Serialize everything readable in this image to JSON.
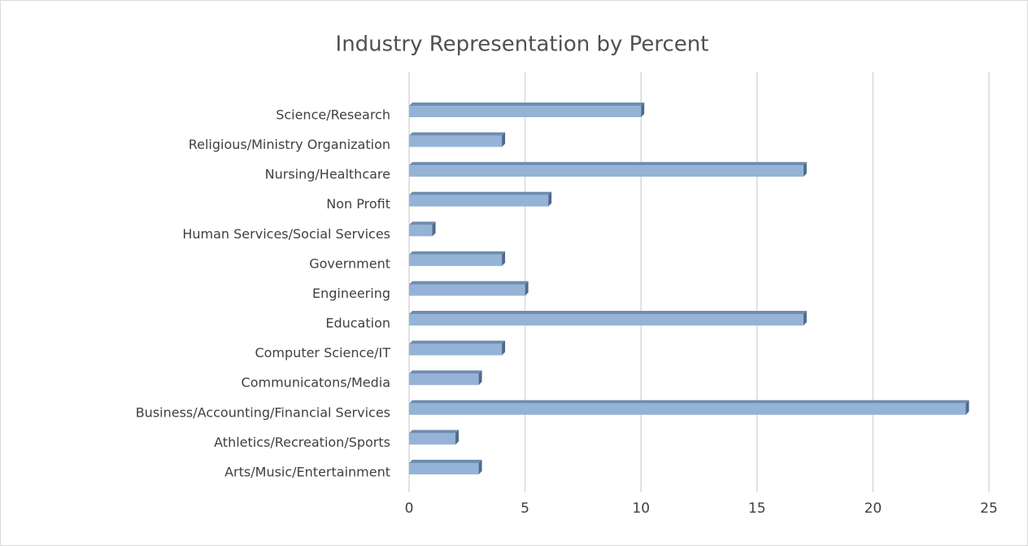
{
  "chart_data": {
    "type": "bar",
    "orientation": "horizontal",
    "title": "Industry Representation by Percent",
    "categories": [
      "Science/Research",
      "Religious/Ministry Organization",
      "Nursing/Healthcare",
      "Non Profit",
      "Human Services/Social Services",
      "Government",
      "Engineering",
      "Education",
      "Computer Science/IT",
      "Communicatons/Media",
      "Business/Accounting/Financial Services",
      "Athletics/Recreation/Sports",
      "Arts/Music/Entertainment"
    ],
    "values": [
      10,
      4,
      17,
      6,
      1,
      4,
      5,
      17,
      4,
      3,
      24,
      2,
      3
    ],
    "color": "#95b3d7",
    "xlim": [
      0,
      25
    ],
    "xticks": [
      0,
      5,
      10,
      15,
      20,
      25
    ],
    "grid": true
  }
}
